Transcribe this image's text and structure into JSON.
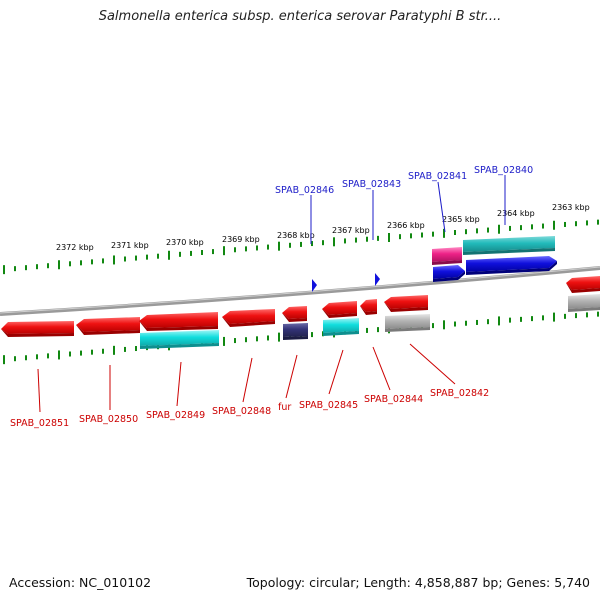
{
  "title": "Salmonella enterica subsp. enterica serovar Paratyphi B str....",
  "footer": {
    "accession": "Accession: NC_010102",
    "summary": "Topology: circular; Length: 4,858,887 bp; Genes: 5,740"
  },
  "scale_labels": [
    "2372 kbp",
    "2371 kbp",
    "2370 kbp",
    "2369 kbp",
    "2368 kbp",
    "2367 kbp",
    "2366 kbp",
    "2365 kbp",
    "2364 kbp",
    "2363 kbp"
  ],
  "top_gene_labels": [
    "SPAB_02846",
    "SPAB_02843",
    "SPAB_02841",
    "SPAB_02840"
  ],
  "bottom_gene_labels": [
    "SPAB_02851",
    "SPAB_02850",
    "SPAB_02849",
    "SPAB_02848",
    "fur",
    "SPAB_02845",
    "SPAB_02844",
    "SPAB_02842"
  ],
  "colors": {
    "cds": "#ee1111",
    "rna_cyan": "#11cccc",
    "teal": "#22bbbb",
    "blue": "#1111dd",
    "navy": "#333377",
    "magenta": "#ee2288",
    "gray": "#aaaaaa",
    "tick": "#118811",
    "backbone": "#888888"
  }
}
